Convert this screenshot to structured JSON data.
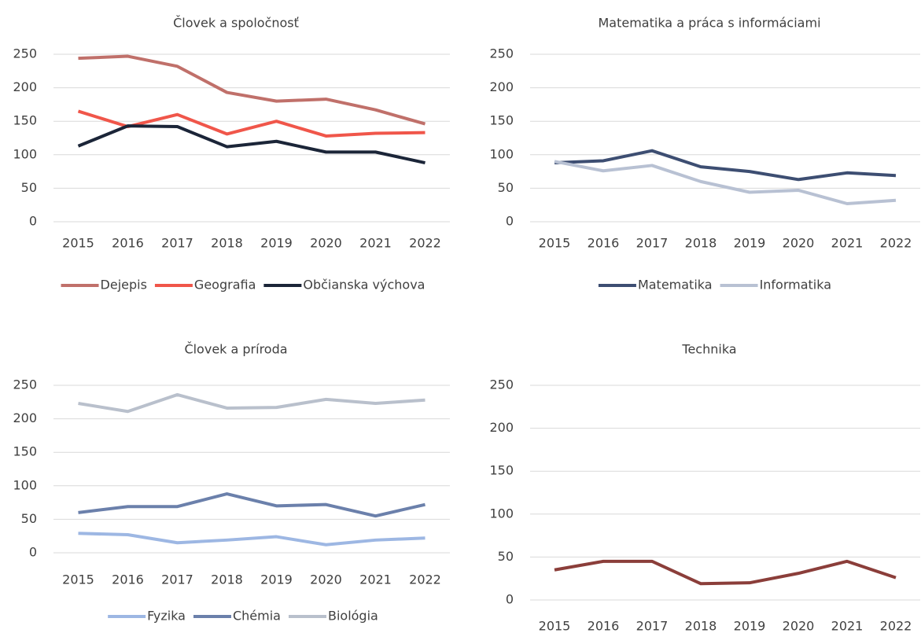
{
  "chart_data": [
    {
      "type": "line",
      "title": "Človek a spoločnosť",
      "categories": [
        "2015",
        "2016",
        "2017",
        "2018",
        "2019",
        "2020",
        "2021",
        "2022"
      ],
      "series": [
        {
          "name": "Dejepis",
          "color": "#c0706a",
          "values": [
            244,
            247,
            232,
            193,
            180,
            183,
            167,
            146
          ]
        },
        {
          "name": "Geografia",
          "color": "#f0564a",
          "values": [
            165,
            142,
            160,
            131,
            150,
            128,
            132,
            133
          ]
        },
        {
          "name": "Občianska výchova",
          "color": "#1b2538",
          "values": [
            113,
            143,
            142,
            112,
            120,
            104,
            104,
            88
          ]
        }
      ],
      "ylim": [
        0,
        250
      ],
      "yticks": [
        0,
        50,
        100,
        150,
        200,
        250
      ],
      "grid": true,
      "legend": "bottom"
    },
    {
      "type": "line",
      "title": "Matematika a práca s informáciami",
      "categories": [
        "2015",
        "2016",
        "2017",
        "2018",
        "2019",
        "2020",
        "2021",
        "2022"
      ],
      "series": [
        {
          "name": "Matematika",
          "color": "#3d4e72",
          "values": [
            88,
            91,
            106,
            82,
            75,
            63,
            73,
            69
          ]
        },
        {
          "name": "Informatika",
          "color": "#b8c1d3",
          "values": [
            90,
            76,
            84,
            60,
            44,
            47,
            27,
            32
          ]
        }
      ],
      "ylim": [
        0,
        250
      ],
      "yticks": [
        0,
        50,
        100,
        150,
        200,
        250
      ],
      "grid": true,
      "legend": "bottom"
    },
    {
      "type": "line",
      "title": "Človek a príroda",
      "categories": [
        "2015",
        "2016",
        "2017",
        "2018",
        "2019",
        "2020",
        "2021",
        "2022"
      ],
      "series": [
        {
          "name": "Fyzika",
          "color": "#9db7e3",
          "values": [
            29,
            27,
            15,
            19,
            24,
            12,
            19,
            22
          ]
        },
        {
          "name": "Chémia",
          "color": "#6b80ab",
          "values": [
            60,
            69,
            69,
            88,
            70,
            72,
            55,
            72
          ]
        },
        {
          "name": "Biológia",
          "color": "#b9c0cc",
          "values": [
            223,
            211,
            236,
            216,
            217,
            229,
            223,
            228
          ]
        }
      ],
      "ylim": [
        0,
        250
      ],
      "yticks": [
        0,
        50,
        100,
        150,
        200,
        250
      ],
      "grid": true,
      "legend": "bottom"
    },
    {
      "type": "line",
      "title": "Technika",
      "categories": [
        "2015",
        "2016",
        "2017",
        "2018",
        "2019",
        "2020",
        "2021",
        "2022"
      ],
      "series": [
        {
          "color": "#8b3e3a",
          "values": [
            35,
            45,
            45,
            19,
            20,
            31,
            45,
            26
          ]
        }
      ],
      "ylim": [
        0,
        250
      ],
      "yticks": [
        0,
        50,
        100,
        150,
        200,
        250
      ],
      "grid": true
    }
  ]
}
